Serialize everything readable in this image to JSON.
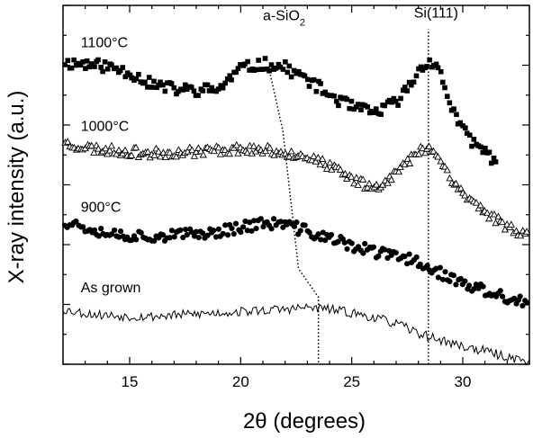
{
  "chart_data": {
    "type": "scatter",
    "xlabel": "2θ (degrees)",
    "ylabel": "X-ray intensity (a.u.)",
    "xlim": [
      12,
      33
    ],
    "ylim": [
      0,
      6
    ],
    "x_ticks": [
      15,
      20,
      25,
      30
    ],
    "y_tick_labels_shown": false,
    "grid": false,
    "legend": "none",
    "series": [
      {
        "name": "1100°C",
        "marker": "square-filled",
        "x": [
          12.0,
          13.0,
          14.0,
          15.0,
          16.0,
          17.0,
          18.0,
          19.0,
          20.0,
          21.0,
          22.0,
          23.0,
          24.0,
          25.0,
          26.0,
          27.0,
          27.5,
          28.0,
          28.5,
          29.0,
          29.5,
          30.0,
          30.5,
          31.0,
          31.5
        ],
        "y": [
          5.04,
          5.02,
          4.98,
          4.88,
          4.68,
          4.6,
          4.58,
          4.6,
          4.94,
          5.02,
          4.96,
          4.76,
          4.5,
          4.3,
          4.2,
          4.38,
          4.6,
          4.9,
          5.1,
          4.85,
          4.3,
          3.9,
          3.7,
          3.55,
          3.4
        ]
      },
      {
        "name": "1000°C",
        "marker": "triangle-open",
        "x": [
          12.0,
          13.0,
          14.0,
          15.0,
          16.0,
          17.0,
          18.0,
          19.0,
          20.0,
          21.0,
          22.0,
          23.0,
          24.0,
          25.0,
          26.0,
          27.0,
          28.0,
          28.5,
          29.0,
          29.5,
          30.0,
          30.5,
          31.0,
          32.0,
          33.0
        ],
        "y": [
          3.7,
          3.62,
          3.58,
          3.55,
          3.52,
          3.54,
          3.56,
          3.58,
          3.6,
          3.58,
          3.54,
          3.48,
          3.3,
          3.1,
          2.95,
          3.2,
          3.55,
          3.65,
          3.4,
          3.1,
          2.85,
          2.7,
          2.55,
          2.3,
          2.15
        ]
      },
      {
        "name": "900°C",
        "marker": "circle-filled",
        "x": [
          12.0,
          13.0,
          14.0,
          15.0,
          16.0,
          17.0,
          18.0,
          19.0,
          20.0,
          21.0,
          22.0,
          23.0,
          24.0,
          25.0,
          26.0,
          27.0,
          28.0,
          29.0,
          30.0,
          31.0,
          32.0,
          33.0
        ],
        "y": [
          2.4,
          2.3,
          2.2,
          2.15,
          2.15,
          2.15,
          2.18,
          2.22,
          2.3,
          2.35,
          2.34,
          2.22,
          2.1,
          1.98,
          1.88,
          1.8,
          1.72,
          1.52,
          1.34,
          1.22,
          1.1,
          1.0
        ]
      },
      {
        "name": "As grown",
        "marker": "line",
        "x": [
          12.0,
          13.0,
          14.0,
          15.0,
          16.0,
          17.0,
          18.0,
          19.0,
          20.0,
          21.0,
          22.0,
          23.0,
          24.0,
          25.0,
          26.0,
          27.0,
          28.0,
          29.0,
          30.0,
          31.0,
          32.0,
          33.0
        ],
        "y": [
          0.92,
          0.85,
          0.82,
          0.8,
          0.8,
          0.82,
          0.84,
          0.86,
          0.88,
          0.9,
          0.92,
          0.95,
          0.92,
          0.86,
          0.78,
          0.68,
          0.52,
          0.4,
          0.3,
          0.22,
          0.12,
          0.06
        ]
      }
    ],
    "annotations": [
      {
        "text": "1100°C",
        "x": 12.8,
        "y": 5.3
      },
      {
        "text": "1000°C",
        "x": 12.8,
        "y": 3.9
      },
      {
        "text": "900°C",
        "x": 12.8,
        "y": 2.55
      },
      {
        "text": "As grown",
        "x": 12.8,
        "y": 1.2
      },
      {
        "text": "a-SiO",
        "subscript": "2",
        "x": 21.0,
        "y": 5.75
      },
      {
        "text": "Si(111)",
        "x": 27.8,
        "y": 5.8
      }
    ],
    "guide_lines": [
      {
        "name": "a-SiO2-trace",
        "style": "dotted",
        "x": [
          21.3,
          21.9,
          22.6,
          23.5,
          23.5
        ],
        "y": [
          4.9,
          3.9,
          1.6,
          1.12,
          0.0
        ]
      },
      {
        "name": "Si111-line",
        "style": "dotted",
        "x": [
          28.45,
          28.45
        ],
        "y": [
          0.0,
          5.6
        ]
      }
    ]
  }
}
